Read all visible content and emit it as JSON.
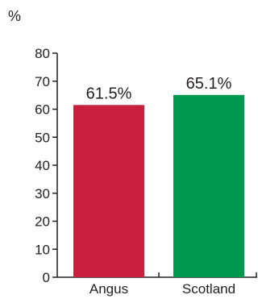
{
  "chart_data": {
    "type": "bar",
    "title": "",
    "ylabel": "%",
    "xlabel": "",
    "categories": [
      "Angus",
      "Scotland"
    ],
    "values": [
      61.5,
      65.1
    ],
    "data_labels": [
      "61.5%",
      "65.1%"
    ],
    "colors": [
      "#c8203d",
      "#009a4e"
    ],
    "ylim": [
      0,
      80
    ],
    "yticks": [
      0,
      10,
      20,
      30,
      40,
      50,
      60,
      70,
      80
    ],
    "grid": false,
    "legend": "none"
  }
}
